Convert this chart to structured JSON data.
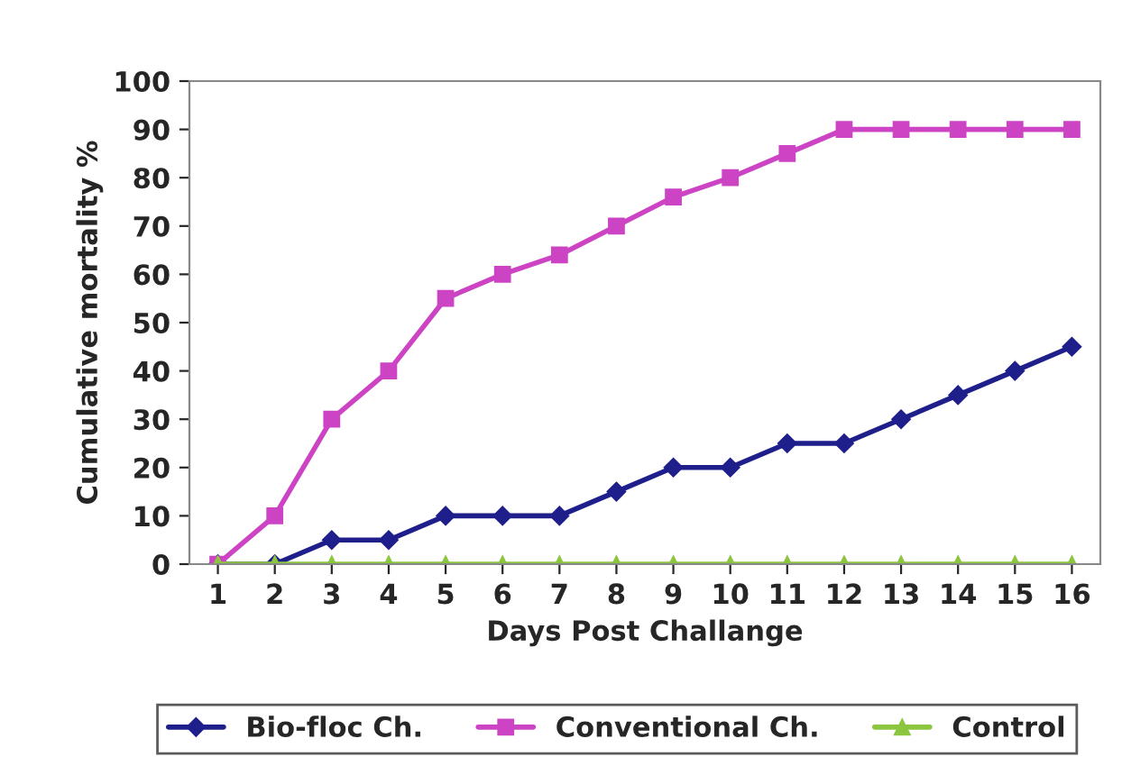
{
  "chart_data": {
    "type": "line",
    "xlabel": "Days Post Challange",
    "ylabel": "Cumulative mortality %",
    "categories": [
      "1",
      "2",
      "3",
      "4",
      "5",
      "6",
      "7",
      "8",
      "9",
      "10",
      "11",
      "12",
      "13",
      "14",
      "15",
      "16"
    ],
    "series": [
      {
        "name": "Bio-floc Ch.",
        "color": "#1f1f8c",
        "marker": "diamond",
        "values": [
          0,
          0,
          5,
          5,
          10,
          10,
          10,
          15,
          20,
          20,
          25,
          25,
          30,
          35,
          40,
          45
        ]
      },
      {
        "name": "Conventional Ch.",
        "color": "#cc44c4",
        "marker": "square",
        "values": [
          0,
          10,
          30,
          40,
          55,
          60,
          64,
          70,
          76,
          80,
          85,
          90,
          90,
          90,
          90,
          90
        ]
      },
      {
        "name": "Control",
        "color": "#8cc63f",
        "marker": "triangle",
        "values": [
          0,
          0,
          0,
          0,
          0,
          0,
          0,
          0,
          0,
          0,
          0,
          0,
          0,
          0,
          0,
          0
        ]
      }
    ],
    "ylim": [
      0,
      100
    ],
    "yticks": [
      0,
      10,
      20,
      30,
      40,
      50,
      60,
      70,
      80,
      90,
      100
    ],
    "grid": false,
    "legend": "bottom"
  }
}
